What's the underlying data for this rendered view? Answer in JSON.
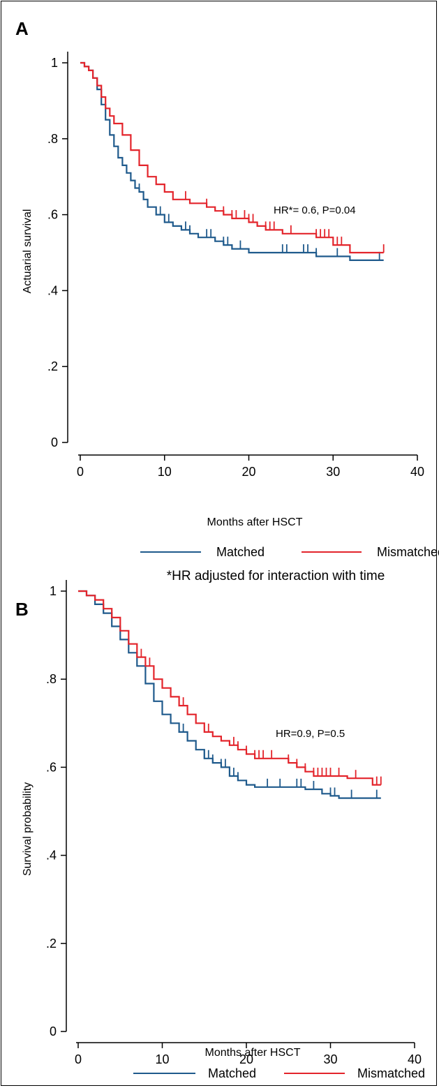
{
  "chart_data": [
    {
      "panel": "A",
      "type": "line",
      "xlabel": "Months after HSCT",
      "ylabel": "Actuarial survival",
      "xlim": [
        0,
        40
      ],
      "ylim": [
        0,
        1
      ],
      "x_ticks": [
        0,
        10,
        20,
        30,
        40
      ],
      "y_ticks": [
        0,
        0.2,
        0.4,
        0.6,
        0.8,
        1
      ],
      "x_tick_labels": [
        "0",
        "10",
        "20",
        "30",
        "40"
      ],
      "y_tick_labels": [
        "0",
        ".2",
        ".4",
        ".6",
        ".8",
        "1"
      ],
      "annotation": "HR*= 0.6, P=0.04",
      "footnote": "*HR adjusted for interaction with time",
      "legend": [
        "Matched",
        "Mismatched"
      ],
      "legend_position": "bottom",
      "grid": false,
      "series": [
        {
          "name": "Matched",
          "color": "#1f5a8c",
          "points": [
            [
              0,
              1
            ],
            [
              0.5,
              0.99
            ],
            [
              1,
              0.98
            ],
            [
              1.5,
              0.96
            ],
            [
              2,
              0.93
            ],
            [
              2.5,
              0.89
            ],
            [
              3,
              0.85
            ],
            [
              3.5,
              0.81
            ],
            [
              4,
              0.78
            ],
            [
              4.5,
              0.75
            ],
            [
              5,
              0.73
            ],
            [
              5.5,
              0.71
            ],
            [
              6,
              0.69
            ],
            [
              6.5,
              0.67
            ],
            [
              7,
              0.66
            ],
            [
              7.5,
              0.64
            ],
            [
              8,
              0.62
            ],
            [
              9,
              0.6
            ],
            [
              10,
              0.58
            ],
            [
              11,
              0.57
            ],
            [
              12,
              0.56
            ],
            [
              13,
              0.55
            ],
            [
              14,
              0.54
            ],
            [
              16,
              0.53
            ],
            [
              17,
              0.52
            ],
            [
              18,
              0.51
            ],
            [
              20,
              0.5
            ],
            [
              26,
              0.5
            ],
            [
              28,
              0.49
            ],
            [
              31,
              0.49
            ],
            [
              32,
              0.48
            ],
            [
              36,
              0.48
            ]
          ],
          "censor_marks": [
            7,
            7.5,
            9.5,
            10.5,
            12.5,
            13,
            15,
            15.5,
            17,
            17.5,
            19,
            24,
            24.5,
            26.5,
            27,
            28,
            30.5,
            35.5
          ]
        },
        {
          "name": "Mismatched",
          "color": "#e3242b",
          "points": [
            [
              0,
              1
            ],
            [
              0.5,
              0.99
            ],
            [
              1,
              0.98
            ],
            [
              1.5,
              0.96
            ],
            [
              2,
              0.94
            ],
            [
              2.5,
              0.91
            ],
            [
              3,
              0.88
            ],
            [
              3.5,
              0.86
            ],
            [
              4,
              0.84
            ],
            [
              5,
              0.81
            ],
            [
              6,
              0.77
            ],
            [
              7,
              0.73
            ],
            [
              8,
              0.7
            ],
            [
              9,
              0.68
            ],
            [
              10,
              0.66
            ],
            [
              11,
              0.64
            ],
            [
              13,
              0.63
            ],
            [
              15,
              0.62
            ],
            [
              16,
              0.61
            ],
            [
              17,
              0.6
            ],
            [
              18,
              0.59
            ],
            [
              20,
              0.58
            ],
            [
              21,
              0.57
            ],
            [
              22,
              0.56
            ],
            [
              24,
              0.55
            ],
            [
              27,
              0.55
            ],
            [
              28,
              0.54
            ],
            [
              30,
              0.52
            ],
            [
              32,
              0.5
            ],
            [
              36,
              0.5
            ]
          ],
          "censor_marks": [
            12.5,
            15,
            17,
            18,
            18.5,
            19.5,
            20,
            20.5,
            22,
            22.5,
            23,
            25,
            28,
            28.5,
            29,
            29.5,
            30.5,
            31,
            36
          ]
        }
      ]
    },
    {
      "panel": "B",
      "type": "line",
      "xlabel": "Months after HSCT",
      "ylabel": "Survival probability",
      "xlim": [
        0,
        40
      ],
      "ylim": [
        0,
        1
      ],
      "x_ticks": [
        0,
        10,
        20,
        30,
        40
      ],
      "y_ticks": [
        0,
        0.2,
        0.4,
        0.6,
        0.8,
        1
      ],
      "x_tick_labels": [
        "0",
        "10",
        "20",
        "30",
        "40"
      ],
      "y_tick_labels": [
        "0",
        ".2",
        ".4",
        ".6",
        ".8",
        "1"
      ],
      "annotation": "HR=0.9, P=0.5",
      "legend": [
        "Matched",
        "Mismatched"
      ],
      "legend_position": "bottom",
      "grid": false,
      "series": [
        {
          "name": "Matched",
          "color": "#1f5a8c",
          "points": [
            [
              0,
              1
            ],
            [
              1,
              0.99
            ],
            [
              2,
              0.97
            ],
            [
              3,
              0.95
            ],
            [
              4,
              0.92
            ],
            [
              5,
              0.89
            ],
            [
              6,
              0.86
            ],
            [
              7,
              0.83
            ],
            [
              8,
              0.79
            ],
            [
              9,
              0.75
            ],
            [
              10,
              0.72
            ],
            [
              11,
              0.7
            ],
            [
              12,
              0.68
            ],
            [
              13,
              0.66
            ],
            [
              14,
              0.64
            ],
            [
              15,
              0.62
            ],
            [
              16,
              0.61
            ],
            [
              17,
              0.6
            ],
            [
              18,
              0.58
            ],
            [
              19,
              0.57
            ],
            [
              20,
              0.56
            ],
            [
              21,
              0.555
            ],
            [
              26,
              0.555
            ],
            [
              27,
              0.55
            ],
            [
              29,
              0.54
            ],
            [
              30,
              0.535
            ],
            [
              31,
              0.53
            ],
            [
              36,
              0.53
            ]
          ],
          "censor_marks": [
            12.5,
            15,
            15.5,
            16,
            17,
            17.5,
            18.5,
            19,
            22.5,
            24,
            26,
            26.5,
            28,
            30,
            30.5,
            32.5,
            35.5
          ]
        },
        {
          "name": "Mismatched",
          "color": "#e3242b",
          "points": [
            [
              0,
              1
            ],
            [
              1,
              0.99
            ],
            [
              2,
              0.98
            ],
            [
              3,
              0.96
            ],
            [
              4,
              0.94
            ],
            [
              5,
              0.91
            ],
            [
              6,
              0.88
            ],
            [
              7,
              0.85
            ],
            [
              8,
              0.83
            ],
            [
              9,
              0.8
            ],
            [
              10,
              0.78
            ],
            [
              11,
              0.76
            ],
            [
              12,
              0.74
            ],
            [
              13,
              0.72
            ],
            [
              14,
              0.7
            ],
            [
              15,
              0.68
            ],
            [
              16,
              0.67
            ],
            [
              17,
              0.66
            ],
            [
              18,
              0.65
            ],
            [
              19,
              0.64
            ],
            [
              20,
              0.63
            ],
            [
              21,
              0.62
            ],
            [
              24,
              0.62
            ],
            [
              25,
              0.61
            ],
            [
              26,
              0.6
            ],
            [
              27,
              0.59
            ],
            [
              28,
              0.58
            ],
            [
              30,
              0.58
            ],
            [
              32,
              0.575
            ],
            [
              35,
              0.56
            ],
            [
              36,
              0.56
            ]
          ],
          "censor_marks": [
            7.5,
            8.5,
            10,
            11,
            12.5,
            15.5,
            18.5,
            19,
            20,
            21,
            21.5,
            22,
            23,
            25,
            26,
            27,
            28,
            28.5,
            29,
            29.5,
            30,
            31,
            33,
            35.5,
            36
          ]
        }
      ]
    }
  ]
}
